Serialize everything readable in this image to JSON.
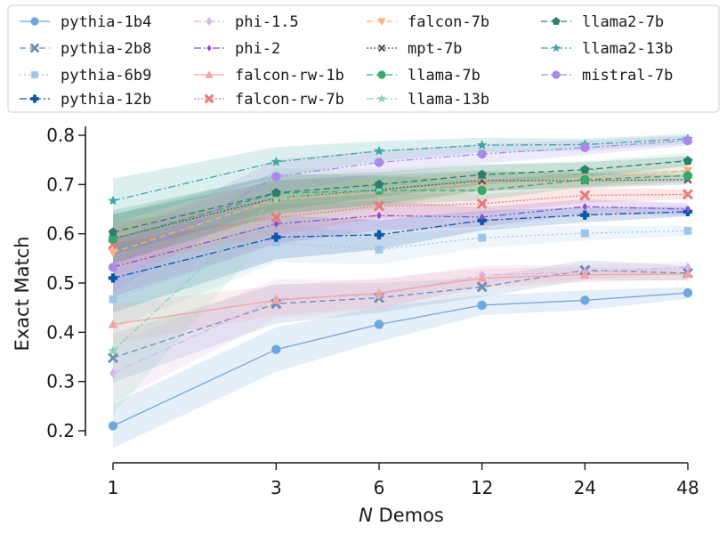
{
  "chart_data": {
    "type": "line",
    "title": "",
    "xlabel_italic": "N",
    "xlabel_rest": " Demos",
    "ylabel": "Exact Match",
    "x_categories": [
      "1",
      "3",
      "6",
      "12",
      "24",
      "48"
    ],
    "x_values": [
      1,
      3,
      6,
      12,
      24,
      48
    ],
    "x_scale": "log",
    "ylim": [
      0.17,
      0.81
    ],
    "yticks": [
      0.2,
      0.3,
      0.4,
      0.5,
      0.6,
      0.7,
      0.8
    ],
    "ytick_labels": [
      "0.2",
      "0.3",
      "0.4",
      "0.5",
      "0.6",
      "0.7",
      "0.8"
    ],
    "grid": false,
    "legend": "top, 4 columns",
    "series": [
      {
        "name": "pythia-1b4",
        "color": "#6fa8dc",
        "marker": "circle",
        "dash": "",
        "values": [
          0.21,
          0.365,
          0.416,
          0.455,
          0.465,
          0.48
        ],
        "band": [
          0.045,
          0.045,
          0.035,
          0.02,
          0.02,
          0.012
        ]
      },
      {
        "name": "pythia-2b8",
        "color": "#6f8fb7",
        "marker": "x",
        "dash": "7,4",
        "values": [
          0.348,
          0.458,
          0.47,
          0.492,
          0.526,
          0.52
        ],
        "band": [
          0.05,
          0.04,
          0.03,
          0.02,
          0.02,
          0.015
        ]
      },
      {
        "name": "pythia-6b9",
        "color": "#9fc5e8",
        "marker": "square",
        "dash": "2,3",
        "values": [
          0.467,
          0.582,
          0.568,
          0.592,
          0.601,
          0.606
        ],
        "band": [
          0.06,
          0.04,
          0.03,
          0.02,
          0.015,
          0.01
        ]
      },
      {
        "name": "pythia-12b",
        "color": "#0b57a8",
        "marker": "plus",
        "dash": "8,3,2,3",
        "values": [
          0.51,
          0.593,
          0.598,
          0.627,
          0.638,
          0.645
        ],
        "band": [
          0.07,
          0.045,
          0.03,
          0.02,
          0.015,
          0.01
        ]
      },
      {
        "name": "phi-1.5",
        "color": "#d7b3f0",
        "marker": "diamond",
        "dash": "8,3,2,3",
        "values": [
          0.317,
          0.468,
          0.476,
          0.516,
          0.522,
          0.532
        ],
        "band": [
          0.06,
          0.04,
          0.03,
          0.02,
          0.015,
          0.012
        ]
      },
      {
        "name": "phi-2",
        "color": "#8a4bd0",
        "marker": "smalldiamond",
        "dash": "8,3,2,3,2,3",
        "values": [
          0.532,
          0.62,
          0.637,
          0.634,
          0.655,
          0.65
        ],
        "band": [
          0.06,
          0.04,
          0.03,
          0.02,
          0.015,
          0.012
        ]
      },
      {
        "name": "falcon-rw-1b",
        "color": "#f4a3a0",
        "marker": "triangle",
        "dash": "",
        "values": [
          0.416,
          0.465,
          0.48,
          0.51,
          0.517,
          0.518
        ],
        "band": [
          0.04,
          0.03,
          0.03,
          0.02,
          0.015,
          0.012
        ]
      },
      {
        "name": "falcon-rw-7b",
        "color": "#e8797a",
        "marker": "x",
        "dash": "2,2",
        "values": [
          0.578,
          0.633,
          0.656,
          0.661,
          0.678,
          0.68
        ],
        "band": [
          0.045,
          0.035,
          0.025,
          0.02,
          0.015,
          0.01
        ]
      },
      {
        "name": "falcon-7b",
        "color": "#fbb37a",
        "marker": "triangledown",
        "dash": "7,4",
        "values": [
          0.562,
          0.67,
          0.684,
          0.705,
          0.712,
          0.728
        ],
        "band": [
          0.05,
          0.04,
          0.03,
          0.02,
          0.015,
          0.012
        ]
      },
      {
        "name": "mpt-7b",
        "color": "#555555",
        "marker": "smallx",
        "dash": "2,2",
        "values": [
          0.59,
          0.673,
          0.69,
          0.708,
          0.708,
          0.71
        ],
        "band": [
          0.05,
          0.035,
          0.03,
          0.02,
          0.015,
          0.01
        ]
      },
      {
        "name": "llama-7b",
        "color": "#3aa76d",
        "marker": "circle",
        "dash": "7,4",
        "values": [
          0.589,
          0.682,
          0.688,
          0.688,
          0.71,
          0.718
        ],
        "band": [
          0.05,
          0.04,
          0.03,
          0.02,
          0.015,
          0.012
        ]
      },
      {
        "name": "llama-13b",
        "color": "#8ed1b0",
        "marker": "star",
        "dash": "8,3,2,3",
        "values": [
          0.362,
          0.673,
          0.692,
          0.716,
          0.728,
          0.75
        ],
        "band": [
          0.13,
          0.06,
          0.04,
          0.025,
          0.02,
          0.015
        ]
      },
      {
        "name": "llama2-7b",
        "color": "#2f7d6b",
        "marker": "pentagon",
        "dash": "7,4",
        "values": [
          0.603,
          0.683,
          0.7,
          0.72,
          0.73,
          0.748
        ],
        "band": [
          0.045,
          0.035,
          0.025,
          0.02,
          0.015,
          0.01
        ]
      },
      {
        "name": "llama2-13b",
        "color": "#3aa8a0",
        "marker": "star",
        "dash": "8,3,2,3",
        "values": [
          0.667,
          0.746,
          0.768,
          0.78,
          0.781,
          0.793
        ],
        "band": [
          0.045,
          0.03,
          0.02,
          0.015,
          0.012,
          0.01
        ]
      },
      {
        "name": "mistral-7b",
        "color": "#a98aeb",
        "marker": "circle",
        "dash": "8,3,2,3,2,3",
        "values": [
          0.532,
          0.716,
          0.745,
          0.762,
          0.775,
          0.789
        ],
        "band": [
          0.05,
          0.035,
          0.025,
          0.02,
          0.015,
          0.01
        ]
      }
    ]
  }
}
